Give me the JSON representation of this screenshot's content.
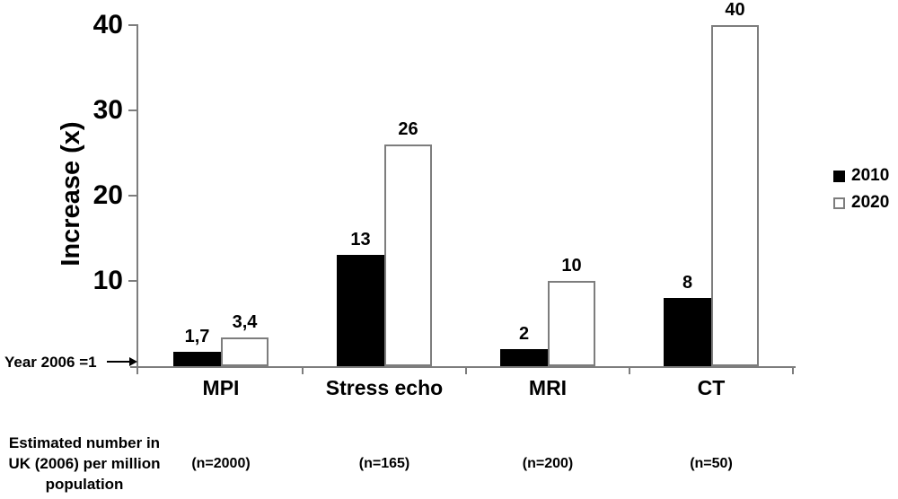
{
  "chart_data": {
    "type": "bar",
    "title": "",
    "ylabel": "Increase (x)",
    "xlabel": "",
    "ylim": [
      0,
      40
    ],
    "y_ticks": [
      40,
      30,
      20,
      10
    ],
    "grid": false,
    "legend_position": "right",
    "categories": [
      "MPI",
      "Stress echo",
      "MRI",
      "CT"
    ],
    "series": [
      {
        "name": "2010",
        "color": "#000000",
        "values": [
          1.7,
          13,
          2,
          8
        ],
        "labels": [
          "1,7",
          "13",
          "2",
          "8"
        ]
      },
      {
        "name": "2020",
        "color": "#ffffff",
        "values": [
          3.4,
          26,
          10,
          40
        ],
        "labels": [
          "3,4",
          "26",
          "10",
          "40"
        ]
      }
    ],
    "n_labels": [
      "(n=2000)",
      "(n=165)",
      "(n=200)",
      "(n=50)"
    ],
    "baseline_annotation": "Year 2006 =1",
    "footnote_lines": [
      "Estimated number in",
      "UK (2006) per million",
      "population"
    ],
    "axis_color": "#7d7d7d",
    "text_color": "#000000",
    "background_color": "#ffffff"
  }
}
